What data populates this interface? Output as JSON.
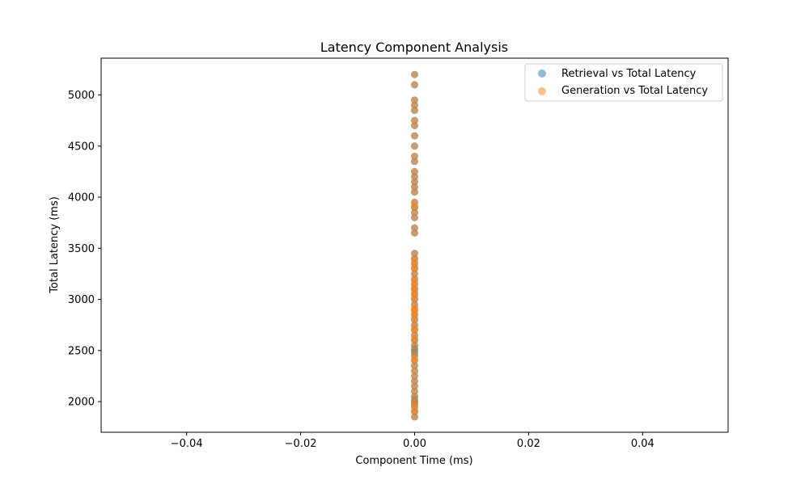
{
  "chart_data": {
    "type": "scatter",
    "title": "Latency Component Analysis",
    "xlabel": "Component Time (ms)",
    "ylabel": "Total Latency (ms)",
    "xlim": [
      -0.055,
      0.055
    ],
    "ylim": [
      1700,
      5360
    ],
    "x_ticks": [
      -0.04,
      -0.02,
      0.0,
      0.02,
      0.04
    ],
    "x_tick_labels": [
      "−0.04",
      "−0.02",
      "0.00",
      "0.02",
      "0.04"
    ],
    "y_ticks": [
      2000,
      2500,
      3000,
      3500,
      4000,
      4500,
      5000
    ],
    "y_tick_labels": [
      "2000",
      "2500",
      "3000",
      "3500",
      "4000",
      "4500",
      "5000"
    ],
    "grid": false,
    "legend_position": "top-right",
    "series": [
      {
        "name": "Retrieval vs Total Latency",
        "color": "#1f77b4",
        "x": [
          0,
          0,
          0,
          0,
          0,
          0,
          0,
          0,
          0,
          0,
          0,
          0,
          0,
          0,
          0,
          0,
          0,
          0,
          0,
          0,
          0,
          0,
          0,
          0,
          0,
          0,
          0,
          0,
          0,
          0,
          0,
          0,
          0,
          0,
          0,
          0,
          0,
          0,
          0,
          0,
          0,
          0,
          0,
          0,
          0,
          0,
          0,
          0,
          0,
          0,
          0,
          0,
          0,
          0,
          0,
          0,
          0,
          0,
          0
        ],
        "y": [
          5200,
          5100,
          4950,
          4900,
          4850,
          4750,
          4700,
          4600,
          4500,
          4400,
          4350,
          4250,
          4200,
          4150,
          4100,
          4050,
          3950,
          3900,
          3850,
          3800,
          3700,
          3650,
          3450,
          3400,
          3350,
          3300,
          3250,
          3200,
          3150,
          3100,
          3050,
          3000,
          2950,
          2900,
          2850,
          2800,
          2750,
          2700,
          2650,
          2600,
          2550,
          2500,
          2450,
          2400,
          2350,
          2300,
          2250,
          2200,
          2150,
          2100,
          2050,
          2000,
          1950,
          1900,
          1850,
          1980,
          2020,
          2480,
          2520
        ]
      },
      {
        "name": "Generation vs Total Latency",
        "color": "#ff7f0e",
        "x": [
          0,
          0,
          0,
          0,
          0,
          0,
          0,
          0,
          0,
          0,
          0,
          0,
          0,
          0,
          0,
          0,
          0,
          0,
          0,
          0,
          0,
          0,
          0,
          0,
          0,
          0,
          0,
          0,
          0,
          0,
          0,
          0,
          0,
          0,
          0,
          0,
          0,
          0,
          0,
          0,
          0,
          0,
          0,
          0,
          0,
          0,
          0,
          0,
          0,
          0,
          0,
          0,
          0,
          0,
          0,
          0,
          0,
          0,
          0,
          0,
          0,
          0,
          0,
          0,
          0,
          0,
          0,
          0,
          0,
          0
        ],
        "y": [
          5200,
          5100,
          4950,
          4900,
          4850,
          4750,
          4700,
          4600,
          4500,
          4400,
          4350,
          4250,
          4200,
          4150,
          4100,
          4050,
          3950,
          3920,
          3900,
          3850,
          3800,
          3700,
          3650,
          3450,
          3400,
          3380,
          3350,
          3320,
          3300,
          3250,
          3200,
          3180,
          3150,
          3120,
          3100,
          3080,
          3050,
          3020,
          3000,
          2950,
          2920,
          2900,
          2880,
          2850,
          2820,
          2800,
          2750,
          2720,
          2700,
          2650,
          2620,
          2600,
          2550,
          2500,
          2450,
          2420,
          2400,
          2350,
          2300,
          2250,
          2200,
          2150,
          2100,
          2050,
          2000,
          1980,
          1950,
          1920,
          1900,
          1850
        ]
      }
    ]
  }
}
